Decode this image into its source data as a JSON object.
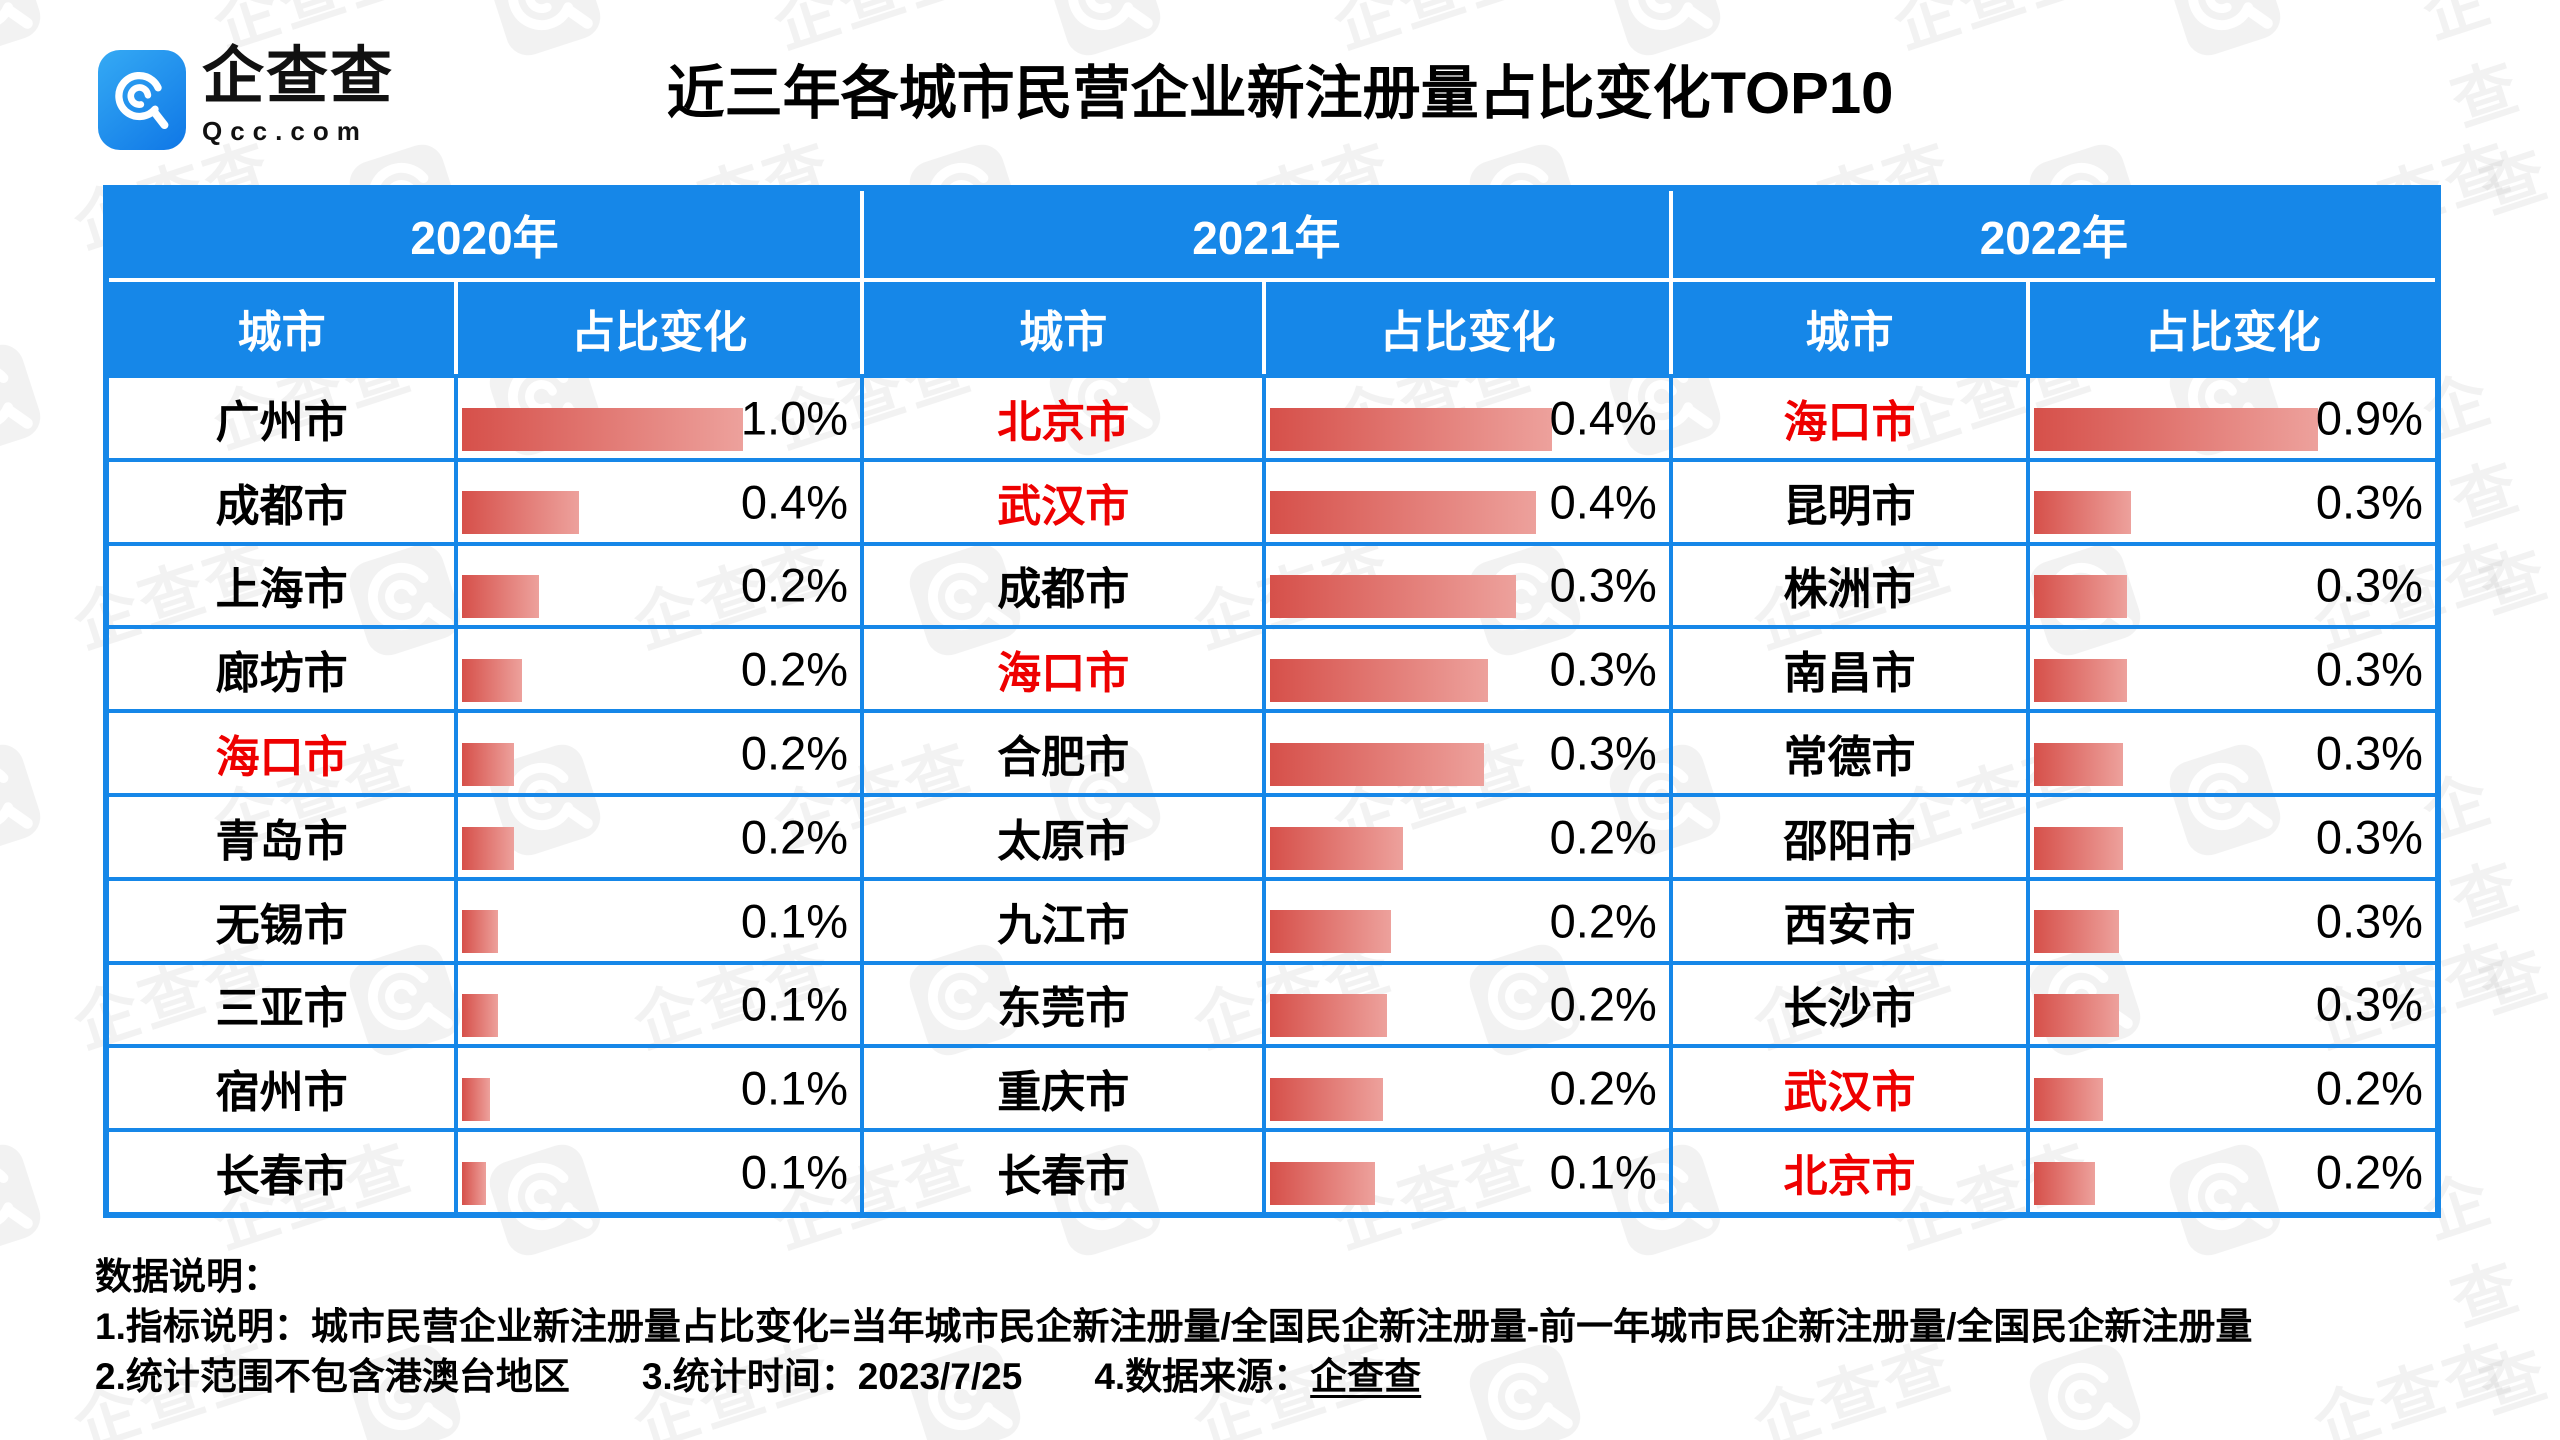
{
  "logo": {
    "name": "企查查",
    "domain": "Qcc.com"
  },
  "page_title": "近三年各城市民营企业新注册量占比变化TOP10",
  "watermark": {
    "text": "企查查",
    "icon": "qcc-spiral-icon"
  },
  "table": {
    "col_city": "城市",
    "col_change": "占比变化",
    "years": [
      {
        "year": "2020年",
        "rows": [
          {
            "city": "广州市",
            "value": "1.0%",
            "bar_pct": 70,
            "highlight": false
          },
          {
            "city": "成都市",
            "value": "0.4%",
            "bar_pct": 29,
            "highlight": false
          },
          {
            "city": "上海市",
            "value": "0.2%",
            "bar_pct": 19,
            "highlight": false
          },
          {
            "city": "廊坊市",
            "value": "0.2%",
            "bar_pct": 15,
            "highlight": false
          },
          {
            "city": "海口市",
            "value": "0.2%",
            "bar_pct": 13,
            "highlight": true
          },
          {
            "city": "青岛市",
            "value": "0.2%",
            "bar_pct": 13,
            "highlight": false
          },
          {
            "city": "无锡市",
            "value": "0.1%",
            "bar_pct": 9,
            "highlight": false
          },
          {
            "city": "三亚市",
            "value": "0.1%",
            "bar_pct": 9,
            "highlight": false
          },
          {
            "city": "宿州市",
            "value": "0.1%",
            "bar_pct": 7,
            "highlight": false
          },
          {
            "city": "长春市",
            "value": "0.1%",
            "bar_pct": 6,
            "highlight": false
          }
        ]
      },
      {
        "year": "2021年",
        "rows": [
          {
            "city": "北京市",
            "value": "0.4%",
            "bar_pct": 70,
            "highlight": true
          },
          {
            "city": "武汉市",
            "value": "0.4%",
            "bar_pct": 66,
            "highlight": true
          },
          {
            "city": "成都市",
            "value": "0.3%",
            "bar_pct": 61,
            "highlight": false
          },
          {
            "city": "海口市",
            "value": "0.3%",
            "bar_pct": 54,
            "highlight": true
          },
          {
            "city": "合肥市",
            "value": "0.3%",
            "bar_pct": 53,
            "highlight": false
          },
          {
            "city": "太原市",
            "value": "0.2%",
            "bar_pct": 33,
            "highlight": false
          },
          {
            "city": "九江市",
            "value": "0.2%",
            "bar_pct": 30,
            "highlight": false
          },
          {
            "city": "东莞市",
            "value": "0.2%",
            "bar_pct": 29,
            "highlight": false
          },
          {
            "city": "重庆市",
            "value": "0.2%",
            "bar_pct": 28,
            "highlight": false
          },
          {
            "city": "长春市",
            "value": "0.1%",
            "bar_pct": 26,
            "highlight": false
          }
        ]
      },
      {
        "year": "2022年",
        "rows": [
          {
            "city": "海口市",
            "value": "0.9%",
            "bar_pct": 70,
            "highlight": true
          },
          {
            "city": "昆明市",
            "value": "0.3%",
            "bar_pct": 24,
            "highlight": false
          },
          {
            "city": "株洲市",
            "value": "0.3%",
            "bar_pct": 23,
            "highlight": false
          },
          {
            "city": "南昌市",
            "value": "0.3%",
            "bar_pct": 23,
            "highlight": false
          },
          {
            "city": "常德市",
            "value": "0.3%",
            "bar_pct": 22,
            "highlight": false
          },
          {
            "city": "邵阳市",
            "value": "0.3%",
            "bar_pct": 22,
            "highlight": false
          },
          {
            "city": "西安市",
            "value": "0.3%",
            "bar_pct": 21,
            "highlight": false
          },
          {
            "city": "长沙市",
            "value": "0.3%",
            "bar_pct": 21,
            "highlight": false
          },
          {
            "city": "武汉市",
            "value": "0.2%",
            "bar_pct": 17,
            "highlight": true
          },
          {
            "city": "北京市",
            "value": "0.2%",
            "bar_pct": 15,
            "highlight": true
          }
        ]
      }
    ]
  },
  "notes": {
    "heading": "数据说明：",
    "line1": "1.指标说明：城市民营企业新注册量占比变化=当年城市民企新注册量/全国民企新注册量-前一年城市民企新注册量/全国民企新注册量",
    "line2_seg1": "2.统计范围不包含港澳台地区",
    "line2_seg2": "3.统计时间：2023/7/25",
    "line2_seg3": "4.数据来源：",
    "source_name": "企查查"
  },
  "colors": {
    "headerBlue": "#1687e8",
    "gridBlue": "#1687e8",
    "barStart": "#d6504a",
    "barEnd": "#eda19c",
    "highlightRed": "#ee0000",
    "logoTop": "#35aaf4",
    "logoBottom": "#0f77e6",
    "watermarkGray": "#777777"
  },
  "chart_data": {
    "type": "table",
    "title": "近三年各城市民营企业新注册量占比变化TOP10",
    "columns": [
      "城市",
      "占比变化"
    ],
    "unit": "percentage points",
    "groups": [
      {
        "year": "2020年",
        "cities": [
          "广州市",
          "成都市",
          "上海市",
          "廊坊市",
          "海口市",
          "青岛市",
          "无锡市",
          "三亚市",
          "宿州市",
          "长春市"
        ],
        "values_pct": [
          1.0,
          0.4,
          0.2,
          0.2,
          0.2,
          0.2,
          0.1,
          0.1,
          0.1,
          0.1
        ],
        "highlighted_cities": [
          "海口市"
        ]
      },
      {
        "year": "2021年",
        "cities": [
          "北京市",
          "武汉市",
          "成都市",
          "海口市",
          "合肥市",
          "太原市",
          "九江市",
          "东莞市",
          "重庆市",
          "长春市"
        ],
        "values_pct": [
          0.4,
          0.4,
          0.3,
          0.3,
          0.3,
          0.2,
          0.2,
          0.2,
          0.2,
          0.1
        ],
        "highlighted_cities": [
          "北京市",
          "武汉市",
          "海口市"
        ]
      },
      {
        "year": "2022年",
        "cities": [
          "海口市",
          "昆明市",
          "株洲市",
          "南昌市",
          "常德市",
          "邵阳市",
          "西安市",
          "长沙市",
          "武汉市",
          "北京市"
        ],
        "values_pct": [
          0.9,
          0.3,
          0.3,
          0.3,
          0.3,
          0.3,
          0.3,
          0.3,
          0.2,
          0.2
        ],
        "highlighted_cities": [
          "海口市",
          "武汉市",
          "北京市"
        ]
      }
    ],
    "bar_style": {
      "orientation": "horizontal",
      "gradient": [
        "#d6504a",
        "#eda19c"
      ],
      "scaled_per_year_column": true
    },
    "legend": "none",
    "grid_color": "#1687e8"
  }
}
